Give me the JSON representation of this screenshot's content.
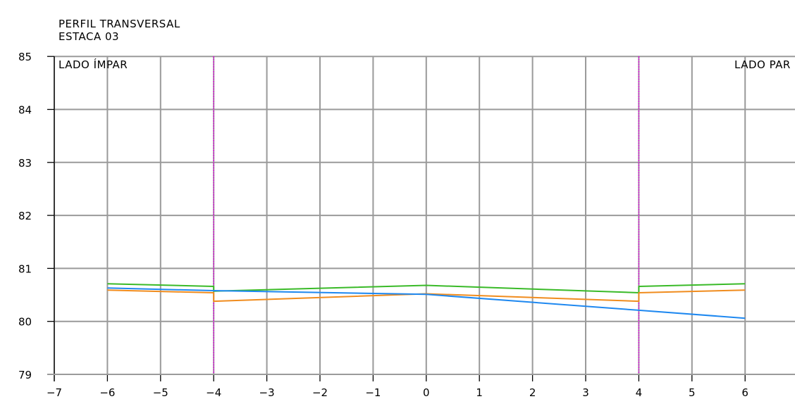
{
  "chart_data": {
    "type": "line",
    "title": "PERFIL TRANSVERSAL",
    "subtitle": "ESTACA 03",
    "xlabel": "",
    "ylabel": "",
    "xlim": [
      -7,
      7
    ],
    "ylim": [
      79,
      85
    ],
    "x_ticks": [
      -7,
      -6,
      -5,
      -4,
      -3,
      -2,
      -1,
      0,
      1,
      2,
      3,
      4,
      5,
      6
    ],
    "y_ticks": [
      79,
      80,
      81,
      82,
      83,
      84,
      85
    ],
    "x_tick_labels": [
      "−7",
      "−6",
      "−5",
      "−4",
      "−3",
      "−2",
      "−1",
      "0",
      "1",
      "2",
      "3",
      "4",
      "5",
      "6"
    ],
    "y_tick_labels": [
      "79",
      "80",
      "81",
      "82",
      "83",
      "84",
      "85"
    ],
    "grid": true,
    "annotations": {
      "left": "LADO ÍMPAR",
      "right": "LADO PAR"
    },
    "vertical_markers": {
      "x": [
        -4,
        4
      ],
      "color": "#e000e0"
    },
    "series": [
      {
        "color": "#3aba28",
        "x": [
          -6,
          -4,
          -4,
          0,
          4,
          4,
          6
        ],
        "y": [
          80.71,
          80.66,
          80.57,
          80.68,
          80.54,
          80.66,
          80.71
        ]
      },
      {
        "color": "#f08c1e",
        "x": [
          -6,
          -4,
          -4,
          0,
          4,
          4,
          6
        ],
        "y": [
          80.59,
          80.54,
          80.38,
          80.52,
          80.38,
          80.54,
          80.59
        ]
      },
      {
        "color": "#1e88f0",
        "x": [
          -6,
          -4,
          0,
          4,
          6
        ],
        "y": [
          80.63,
          80.58,
          80.51,
          80.21,
          80.06
        ]
      }
    ],
    "colors": {
      "grid": "#9a9a9a",
      "axis": "#000000"
    }
  }
}
